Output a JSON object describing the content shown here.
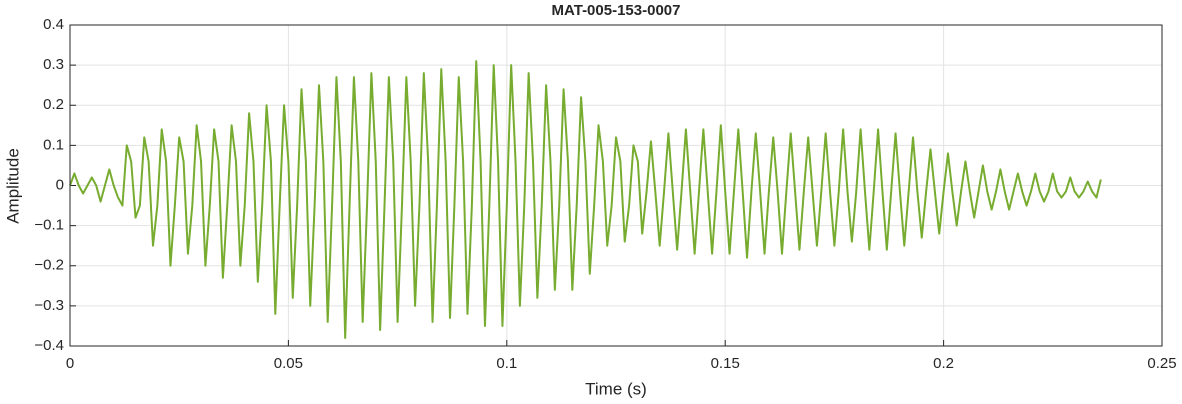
{
  "chart_data": {
    "type": "line",
    "title": "MAT-005-153-0007",
    "x_label": "Time (s)",
    "y_label": "Amplitude",
    "x": [
      0,
      0.001,
      0.002,
      0.003,
      0.004,
      0.005,
      0.006,
      0.007,
      0.008,
      0.009,
      0.01,
      0.011,
      0.012,
      0.013,
      0.014,
      0.015,
      0.016,
      0.017,
      0.018,
      0.019,
      0.02,
      0.021,
      0.022,
      0.023,
      0.024,
      0.025,
      0.026,
      0.027,
      0.028,
      0.029,
      0.03,
      0.031,
      0.032,
      0.033,
      0.034,
      0.035,
      0.036,
      0.037,
      0.038,
      0.039,
      0.04,
      0.041,
      0.042,
      0.043,
      0.044,
      0.045,
      0.046,
      0.047,
      0.048,
      0.049,
      0.05,
      0.051,
      0.052,
      0.053,
      0.054,
      0.055,
      0.056,
      0.057,
      0.058,
      0.059,
      0.06,
      0.061,
      0.062,
      0.063,
      0.064,
      0.065,
      0.066,
      0.067,
      0.068,
      0.069,
      0.07,
      0.071,
      0.072,
      0.073,
      0.074,
      0.075,
      0.076,
      0.077,
      0.078,
      0.079,
      0.08,
      0.081,
      0.082,
      0.083,
      0.084,
      0.085,
      0.086,
      0.087,
      0.088,
      0.089,
      0.09,
      0.091,
      0.092,
      0.093,
      0.094,
      0.095,
      0.096,
      0.097,
      0.098,
      0.099,
      0.1,
      0.101,
      0.102,
      0.103,
      0.104,
      0.105,
      0.106,
      0.107,
      0.108,
      0.109,
      0.11,
      0.111,
      0.112,
      0.113,
      0.114,
      0.115,
      0.116,
      0.117,
      0.118,
      0.119,
      0.12,
      0.121,
      0.122,
      0.123,
      0.124,
      0.125,
      0.126,
      0.127,
      0.128,
      0.129,
      0.13,
      0.131,
      0.132,
      0.133,
      0.134,
      0.135,
      0.136,
      0.137,
      0.138,
      0.139,
      0.14,
      0.141,
      0.142,
      0.143,
      0.144,
      0.145,
      0.146,
      0.147,
      0.148,
      0.149,
      0.15,
      0.151,
      0.152,
      0.153,
      0.154,
      0.155,
      0.156,
      0.157,
      0.158,
      0.159,
      0.16,
      0.161,
      0.162,
      0.163,
      0.164,
      0.165,
      0.166,
      0.167,
      0.168,
      0.169,
      0.17,
      0.171,
      0.172,
      0.173,
      0.174,
      0.175,
      0.176,
      0.177,
      0.178,
      0.179,
      0.18,
      0.181,
      0.182,
      0.183,
      0.184,
      0.185,
      0.186,
      0.187,
      0.188,
      0.189,
      0.19,
      0.191,
      0.192,
      0.193,
      0.194,
      0.195,
      0.196,
      0.197,
      0.198,
      0.199,
      0.2,
      0.201,
      0.202,
      0.203,
      0.204,
      0.205,
      0.206,
      0.207,
      0.208,
      0.209,
      0.21,
      0.211,
      0.212,
      0.213,
      0.214,
      0.215,
      0.216,
      0.217,
      0.218,
      0.219,
      0.22,
      0.221,
      0.222,
      0.223,
      0.224,
      0.225,
      0.226,
      0.227,
      0.228,
      0.229,
      0.23,
      0.231,
      0.232,
      0.233,
      0.234,
      0.235,
      0.236
    ],
    "series": [
      {
        "color": "#77ac30",
        "values": [
          0,
          0.03,
          0,
          -0.02,
          0,
          0.02,
          0,
          -0.04,
          0,
          0.04,
          0,
          -0.03,
          -0.05,
          0.1,
          0.06,
          -0.08,
          -0.05,
          0.12,
          0.06,
          -0.15,
          -0.05,
          0.14,
          0.06,
          -0.2,
          -0.05,
          0.12,
          0.06,
          -0.17,
          -0.05,
          0.15,
          0.06,
          -0.2,
          -0.05,
          0.14,
          0.06,
          -0.23,
          -0.05,
          0.15,
          0.06,
          -0.2,
          -0.05,
          0.18,
          0.06,
          -0.24,
          -0.05,
          0.2,
          0.06,
          -0.32,
          -0.05,
          0.2,
          0.06,
          -0.28,
          -0.05,
          0.24,
          0.06,
          -0.3,
          -0.05,
          0.25,
          0.06,
          -0.34,
          -0.05,
          0.27,
          0.06,
          -0.38,
          -0.05,
          0.27,
          0.06,
          -0.34,
          -0.05,
          0.28,
          0.06,
          -0.36,
          -0.05,
          0.27,
          0.06,
          -0.34,
          -0.05,
          0.27,
          0.06,
          -0.3,
          -0.05,
          0.28,
          0.06,
          -0.34,
          -0.05,
          0.29,
          0.06,
          -0.33,
          -0.05,
          0.27,
          0.06,
          -0.32,
          -0.05,
          0.31,
          0.06,
          -0.35,
          -0.05,
          0.3,
          0.06,
          -0.35,
          -0.05,
          0.3,
          0.06,
          -0.3,
          -0.05,
          0.28,
          0.06,
          -0.28,
          -0.05,
          0.25,
          0.06,
          -0.26,
          -0.05,
          0.24,
          0.06,
          -0.26,
          -0.05,
          0.22,
          0.06,
          -0.22,
          -0.05,
          0.15,
          0.06,
          -0.15,
          -0.05,
          0.12,
          0.06,
          -0.14,
          -0.05,
          0.1,
          0.06,
          -0.12,
          -0.015,
          0.11,
          -0.015,
          -0.15,
          -0.015,
          0.13,
          -0.015,
          -0.16,
          -0.015,
          0.14,
          -0.015,
          -0.17,
          -0.015,
          0.14,
          -0.015,
          -0.17,
          -0.015,
          0.15,
          -0.015,
          -0.17,
          -0.015,
          0.14,
          -0.015,
          -0.18,
          -0.015,
          0.13,
          -0.015,
          -0.17,
          -0.015,
          0.12,
          -0.015,
          -0.17,
          -0.015,
          0.13,
          -0.015,
          -0.16,
          -0.015,
          0.12,
          -0.015,
          -0.15,
          -0.015,
          0.13,
          -0.015,
          -0.15,
          -0.015,
          0.14,
          -0.015,
          -0.14,
          -0.015,
          0.14,
          -0.015,
          -0.16,
          -0.015,
          0.14,
          -0.015,
          -0.16,
          -0.015,
          0.13,
          -0.015,
          -0.15,
          -0.015,
          0.12,
          -0.015,
          -0.13,
          -0.015,
          0.09,
          -0.015,
          -0.12,
          -0.015,
          0.08,
          -0.015,
          -0.1,
          -0.015,
          0.06,
          -0.015,
          -0.08,
          -0.015,
          0.05,
          -0.015,
          -0.06,
          -0.015,
          0.04,
          -0.015,
          -0.06,
          -0.015,
          0.03,
          -0.015,
          -0.05,
          -0.015,
          0.03,
          -0.015,
          -0.04,
          -0.015,
          0.03,
          -0.015,
          -0.03,
          -0.015,
          0.02,
          -0.015,
          -0.03,
          -0.015,
          0.01,
          -0.015,
          -0.03,
          0.015
        ]
      }
    ],
    "xlim": [
      0,
      0.25
    ],
    "xticks": [
      0,
      0.05,
      0.1,
      0.15,
      0.2,
      0.25
    ],
    "ylim": [
      -0.4,
      0.4
    ],
    "yticks": [
      -0.4,
      -0.3,
      -0.2,
      -0.1,
      0,
      0.1,
      0.2,
      0.3,
      0.4
    ],
    "grid": true
  }
}
